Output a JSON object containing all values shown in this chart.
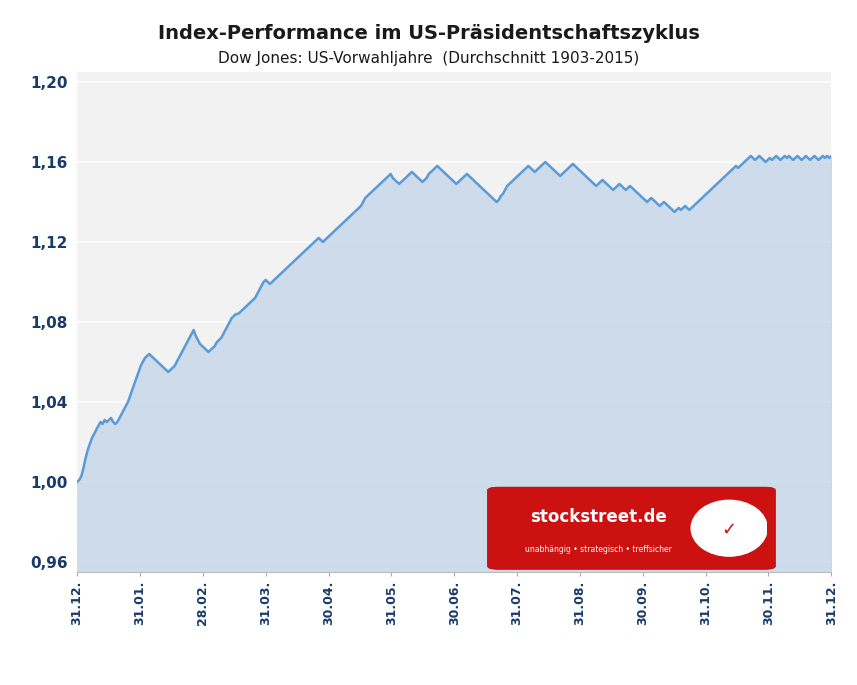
{
  "title": "Index-Performance im US-Präsidentschaftszyklus",
  "subtitle": "Dow Jones: US-Vorwahljahre  (Durchschnitt 1903-2015)",
  "title_fontsize": 14,
  "subtitle_fontsize": 11,
  "line_color": "#5b9bd5",
  "fill_color": "#c8d8ea",
  "background_color": "#ffffff",
  "plot_bg_color": "#f2f2f2",
  "ylim": [
    0.955,
    1.205
  ],
  "yticks": [
    0.96,
    1.0,
    1.04,
    1.08,
    1.12,
    1.16,
    1.2
  ],
  "ytick_labels": [
    "0,96",
    "1,00",
    "1,04",
    "1,08",
    "1,12",
    "1,16",
    "1,20"
  ],
  "xtick_labels": [
    "31.12.",
    "31.01.",
    "28.02.",
    "31.03.",
    "30.04.",
    "31.05.",
    "30.06.",
    "31.07.",
    "31.08.",
    "30.09.",
    "31.10.",
    "30.11.",
    "31.12."
  ],
  "watermark_text": "stockstreet.de",
  "watermark_sub": "unabhängig • strategisch • treffsicher",
  "y_values": [
    1.0,
    1.001,
    1.003,
    1.007,
    1.012,
    1.016,
    1.019,
    1.022,
    1.024,
    1.026,
    1.028,
    1.03,
    1.029,
    1.031,
    1.03,
    1.031,
    1.032,
    1.03,
    1.029,
    1.03,
    1.032,
    1.034,
    1.036,
    1.038,
    1.04,
    1.043,
    1.046,
    1.049,
    1.052,
    1.055,
    1.058,
    1.06,
    1.062,
    1.063,
    1.064,
    1.063,
    1.062,
    1.061,
    1.06,
    1.059,
    1.058,
    1.057,
    1.056,
    1.055,
    1.056,
    1.057,
    1.058,
    1.06,
    1.062,
    1.064,
    1.066,
    1.068,
    1.07,
    1.072,
    1.074,
    1.076,
    1.073,
    1.071,
    1.069,
    1.068,
    1.067,
    1.066,
    1.065,
    1.066,
    1.067,
    1.068,
    1.07,
    1.071,
    1.072,
    1.074,
    1.076,
    1.078,
    1.08,
    1.082,
    1.083,
    1.084,
    1.084,
    1.085,
    1.086,
    1.087,
    1.088,
    1.089,
    1.09,
    1.091,
    1.092,
    1.094,
    1.096,
    1.098,
    1.1,
    1.101,
    1.1,
    1.099,
    1.1,
    1.101,
    1.102,
    1.103,
    1.104,
    1.105,
    1.106,
    1.107,
    1.108,
    1.109,
    1.11,
    1.111,
    1.112,
    1.113,
    1.114,
    1.115,
    1.116,
    1.117,
    1.118,
    1.119,
    1.12,
    1.121,
    1.122,
    1.121,
    1.12,
    1.121,
    1.122,
    1.123,
    1.124,
    1.125,
    1.126,
    1.127,
    1.128,
    1.129,
    1.13,
    1.131,
    1.132,
    1.133,
    1.134,
    1.135,
    1.136,
    1.137,
    1.138,
    1.14,
    1.142,
    1.143,
    1.144,
    1.145,
    1.146,
    1.147,
    1.148,
    1.149,
    1.15,
    1.151,
    1.152,
    1.153,
    1.154,
    1.152,
    1.151,
    1.15,
    1.149,
    1.15,
    1.151,
    1.152,
    1.153,
    1.154,
    1.155,
    1.154,
    1.153,
    1.152,
    1.151,
    1.15,
    1.151,
    1.152,
    1.154,
    1.155,
    1.156,
    1.157,
    1.158,
    1.157,
    1.156,
    1.155,
    1.154,
    1.153,
    1.152,
    1.151,
    1.15,
    1.149,
    1.15,
    1.151,
    1.152,
    1.153,
    1.154,
    1.153,
    1.152,
    1.151,
    1.15,
    1.149,
    1.148,
    1.147,
    1.146,
    1.145,
    1.144,
    1.143,
    1.142,
    1.141,
    1.14,
    1.141,
    1.143,
    1.144,
    1.146,
    1.148,
    1.149,
    1.15,
    1.151,
    1.152,
    1.153,
    1.154,
    1.155,
    1.156,
    1.157,
    1.158,
    1.157,
    1.156,
    1.155,
    1.156,
    1.157,
    1.158,
    1.159,
    1.16,
    1.159,
    1.158,
    1.157,
    1.156,
    1.155,
    1.154,
    1.153,
    1.154,
    1.155,
    1.156,
    1.157,
    1.158,
    1.159,
    1.158,
    1.157,
    1.156,
    1.155,
    1.154,
    1.153,
    1.152,
    1.151,
    1.15,
    1.149,
    1.148,
    1.149,
    1.15,
    1.151,
    1.15,
    1.149,
    1.148,
    1.147,
    1.146,
    1.147,
    1.148,
    1.149,
    1.148,
    1.147,
    1.146,
    1.147,
    1.148,
    1.147,
    1.146,
    1.145,
    1.144,
    1.143,
    1.142,
    1.141,
    1.14,
    1.141,
    1.142,
    1.141,
    1.14,
    1.139,
    1.138,
    1.139,
    1.14,
    1.139,
    1.138,
    1.137,
    1.136,
    1.135,
    1.136,
    1.137,
    1.136,
    1.137,
    1.138,
    1.137,
    1.136,
    1.137,
    1.138,
    1.139,
    1.14,
    1.141,
    1.142,
    1.143,
    1.144,
    1.145,
    1.146,
    1.147,
    1.148,
    1.149,
    1.15,
    1.151,
    1.152,
    1.153,
    1.154,
    1.155,
    1.156,
    1.157,
    1.158,
    1.157,
    1.158,
    1.159,
    1.16,
    1.161,
    1.162,
    1.163,
    1.162,
    1.161,
    1.162,
    1.163,
    1.162,
    1.161,
    1.16,
    1.161,
    1.162,
    1.161,
    1.162,
    1.163,
    1.162,
    1.161,
    1.162,
    1.163,
    1.162,
    1.163,
    1.162,
    1.161,
    1.162,
    1.163,
    1.162,
    1.161,
    1.162,
    1.163,
    1.162,
    1.161,
    1.162,
    1.163,
    1.162,
    1.161,
    1.162,
    1.163,
    1.162,
    1.163,
    1.162,
    1.163
  ]
}
